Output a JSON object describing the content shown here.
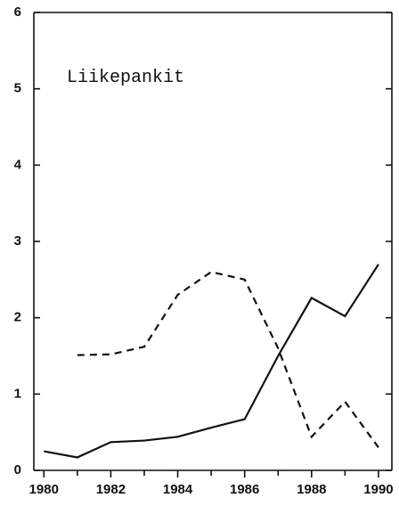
{
  "chart_data": {
    "type": "line",
    "annotation": "Liikepankit",
    "x": [
      1980,
      1981,
      1982,
      1983,
      1984,
      1985,
      1986,
      1987,
      1988,
      1989,
      1990
    ],
    "series": [
      {
        "color": "#111111",
        "dashed": false,
        "values": [
          0.25,
          0.17,
          0.37,
          0.39,
          0.44,
          0.56,
          0.67,
          1.5,
          2.26,
          2.02,
          2.7
        ]
      },
      {
        "color": "#111111",
        "dashed": true,
        "values": [
          null,
          1.51,
          1.52,
          1.62,
          2.3,
          2.6,
          2.5,
          1.6,
          0.44,
          0.9,
          0.3
        ]
      }
    ],
    "xlim": [
      1979.7,
      1990.4
    ],
    "xticks": [
      1980,
      1982,
      1984,
      1986,
      1988,
      1990
    ],
    "xminor_ticks": [
      1981,
      1983,
      1985,
      1987,
      1989
    ],
    "ylim": [
      0,
      6
    ],
    "yticks": [
      0,
      1,
      2,
      3,
      4,
      5,
      6
    ]
  }
}
